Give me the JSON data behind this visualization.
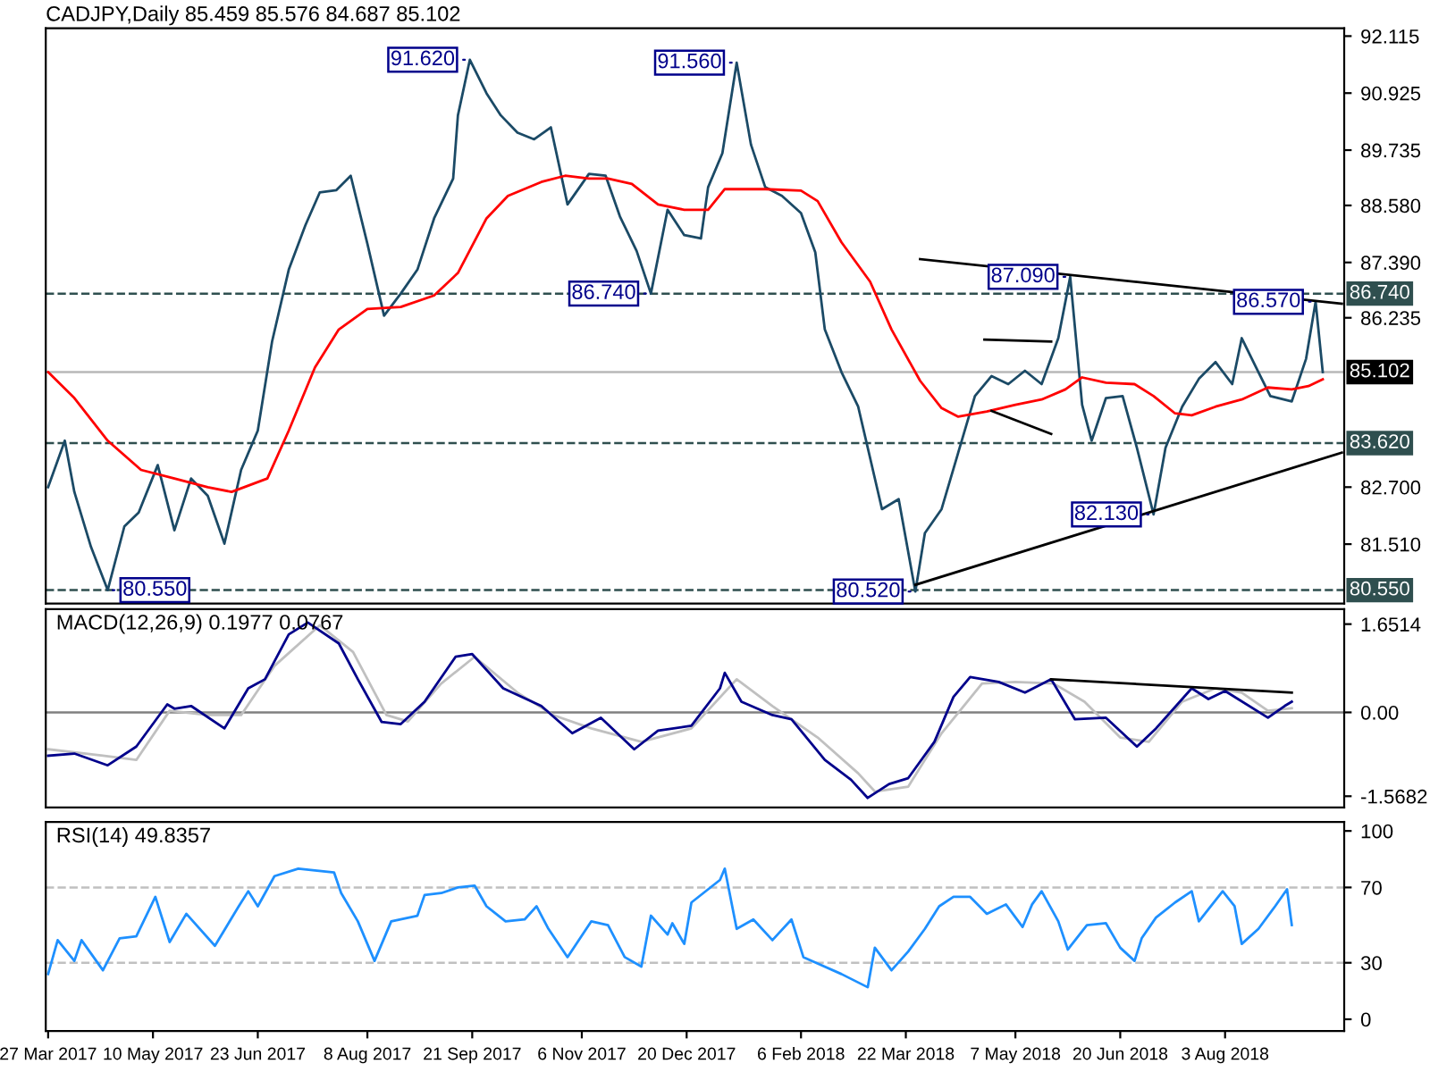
{
  "chart_data": [
    {
      "type": "line",
      "title": "CADJPY,Daily 85.459 85.576 84.687 85.102",
      "tick_labels": "y",
      "xlim": [
        "2017-03-26",
        "2018-09-22"
      ],
      "ylim": [
        80.27,
        92.28
      ],
      "yticks": [
        {
          "value": 92.115,
          "label": "92.115"
        },
        {
          "value": 90.925,
          "label": "90.925"
        },
        {
          "value": 89.735,
          "label": "89.735"
        },
        {
          "value": 88.58,
          "label": "88.580"
        },
        {
          "value": 87.39,
          "label": "87.390"
        },
        {
          "value": 86.235,
          "label": "86.235"
        },
        {
          "value": 82.7,
          "label": "82.700"
        },
        {
          "value": 81.51,
          "label": "81.510"
        }
      ],
      "series": [
        {
          "color": "#1b4a66",
          "x": [
            "2017-03-27",
            "2017-04-03",
            "2017-04-07",
            "2017-04-14",
            "2017-04-21",
            "2017-04-28",
            "2017-05-04",
            "2017-05-12",
            "2017-05-19",
            "2017-05-26",
            "2017-06-02",
            "2017-06-09",
            "2017-06-16",
            "2017-06-23",
            "2017-06-29",
            "2017-07-06",
            "2017-07-13",
            "2017-07-19",
            "2017-07-26",
            "2017-08-01",
            "2017-08-08",
            "2017-08-15",
            "2017-08-22",
            "2017-08-29",
            "2017-09-05",
            "2017-09-13",
            "2017-09-15",
            "2017-09-20",
            "2017-09-27",
            "2017-10-03",
            "2017-10-10",
            "2017-10-17",
            "2017-10-24",
            "2017-10-31",
            "2017-11-09",
            "2017-11-16",
            "2017-11-22",
            "2017-11-29",
            "2017-12-05",
            "2017-12-12",
            "2017-12-19",
            "2017-12-26",
            "2017-12-29",
            "2018-01-04",
            "2018-01-10",
            "2018-01-16",
            "2018-01-22",
            "2018-01-29",
            "2018-02-06",
            "2018-02-12",
            "2018-02-16",
            "2018-02-23",
            "2018-03-02",
            "2018-03-12",
            "2018-03-19",
            "2018-03-26",
            "2018-03-30",
            "2018-04-06",
            "2018-04-13",
            "2018-04-20",
            "2018-04-27",
            "2018-05-04",
            "2018-05-11",
            "2018-05-18",
            "2018-05-25",
            "2018-05-30",
            "2018-06-04",
            "2018-06-08",
            "2018-06-14",
            "2018-06-21",
            "2018-06-27",
            "2018-07-04",
            "2018-07-09",
            "2018-07-16",
            "2018-07-23",
            "2018-07-30",
            "2018-08-06",
            "2018-08-10",
            "2018-08-17",
            "2018-08-22",
            "2018-08-31",
            "2018-09-06",
            "2018-09-10",
            "2018-09-13"
          ],
          "values": [
            82.7,
            83.67,
            82.6,
            81.45,
            80.55,
            81.88,
            82.17,
            83.16,
            81.8,
            82.88,
            82.52,
            81.52,
            83.06,
            83.88,
            85.74,
            87.24,
            88.17,
            88.85,
            88.9,
            89.2,
            87.78,
            86.28,
            86.74,
            87.24,
            88.31,
            89.14,
            90.46,
            91.62,
            90.92,
            90.46,
            90.1,
            89.96,
            90.21,
            88.6,
            89.24,
            89.2,
            88.35,
            87.63,
            86.74,
            88.49,
            87.96,
            87.89,
            88.96,
            89.67,
            91.56,
            89.85,
            88.96,
            88.78,
            88.42,
            87.6,
            85.99,
            85.1,
            84.38,
            82.24,
            82.45,
            80.52,
            81.74,
            82.24,
            83.42,
            84.6,
            85.02,
            84.85,
            85.13,
            84.85,
            85.81,
            87.09,
            84.42,
            83.67,
            84.56,
            84.6,
            83.52,
            82.13,
            83.52,
            84.38,
            84.96,
            85.31,
            84.85,
            85.81,
            85.1,
            84.6,
            84.49,
            85.38,
            86.57,
            85.102
          ]
        },
        {
          "color": "#ff0000",
          "x": [
            "2017-03-27",
            "2017-04-07",
            "2017-04-21",
            "2017-05-05",
            "2017-05-19",
            "2017-06-02",
            "2017-06-12",
            "2017-06-27",
            "2017-07-06",
            "2017-07-17",
            "2017-07-27",
            "2017-08-08",
            "2017-08-22",
            "2017-09-05",
            "2017-09-15",
            "2017-09-27",
            "2017-10-06",
            "2017-10-20",
            "2017-10-30",
            "2017-11-09",
            "2017-11-17",
            "2017-11-27",
            "2017-12-08",
            "2017-12-19",
            "2017-12-29",
            "2018-01-05",
            "2018-01-22",
            "2018-02-06",
            "2018-02-13",
            "2018-02-23",
            "2018-03-07",
            "2018-03-16",
            "2018-03-28",
            "2018-04-06",
            "2018-04-13",
            "2018-04-25",
            "2018-05-07",
            "2018-05-18",
            "2018-05-28",
            "2018-06-04",
            "2018-06-14",
            "2018-06-26",
            "2018-07-04",
            "2018-07-13",
            "2018-07-20",
            "2018-07-30",
            "2018-08-10",
            "2018-08-21",
            "2018-08-31",
            "2018-09-07",
            "2018-09-13"
          ],
          "values": [
            85.1,
            84.56,
            83.67,
            83.06,
            82.88,
            82.7,
            82.6,
            82.88,
            83.88,
            85.2,
            85.99,
            86.42,
            86.46,
            86.7,
            87.17,
            88.31,
            88.78,
            89.07,
            89.2,
            89.14,
            89.14,
            89.03,
            88.6,
            88.49,
            88.49,
            88.92,
            88.92,
            88.89,
            88.67,
            87.81,
            86.99,
            85.99,
            84.92,
            84.35,
            84.17,
            84.28,
            84.42,
            84.53,
            84.74,
            84.99,
            84.88,
            84.85,
            84.6,
            84.24,
            84.2,
            84.38,
            84.53,
            84.78,
            84.74,
            84.81,
            84.95
          ]
        },
        {
          "color": "#000000",
          "x": [
            "2018-03-28",
            "2018-09-21"
          ],
          "values": [
            87.46,
            86.53
          ]
        },
        {
          "color": "#000000",
          "x": [
            "2018-03-26",
            "2018-09-21"
          ],
          "values": [
            80.66,
            83.42
          ]
        },
        {
          "color": "#000000",
          "x": [
            "2018-04-24",
            "2018-05-22"
          ],
          "values": [
            85.78,
            85.74
          ]
        },
        {
          "color": "#000000",
          "x": [
            "2018-04-27",
            "2018-05-22"
          ],
          "values": [
            84.29,
            83.81
          ]
        }
      ],
      "ref_lines": [
        {
          "axis": "y",
          "value": 86.74,
          "label": "86.740",
          "color": "#2f4f4f",
          "line_style": "dashed"
        },
        {
          "axis": "y",
          "value": 85.102,
          "label": "85.102",
          "color": "#b8b8b8",
          "line_style": "solid"
        },
        {
          "axis": "y",
          "value": 83.62,
          "label": "83.620",
          "color": "#2f4f4f",
          "line_style": "dashed"
        },
        {
          "axis": "y",
          "value": 80.55,
          "label": "80.550",
          "color": "#2f4f4f",
          "line_style": "dashed"
        }
      ],
      "annotations": [
        {
          "text": "91.620",
          "x": "2017-09-20",
          "y": 91.62
        },
        {
          "text": "91.560",
          "x": "2018-01-10",
          "y": 91.56
        },
        {
          "text": "86.740",
          "x": "2017-12-05",
          "y": 86.74
        },
        {
          "text": "87.090",
          "x": "2018-05-30",
          "y": 87.09
        },
        {
          "text": "86.570",
          "x": "2018-09-10",
          "y": 86.57
        },
        {
          "text": "82.130",
          "x": "2018-07-04",
          "y": 82.13
        },
        {
          "text": "80.520",
          "x": "2018-03-26",
          "y": 80.52
        },
        {
          "text": "80.550",
          "x": "2017-04-21",
          "y": 80.55
        }
      ]
    },
    {
      "type": "line",
      "title": "MACD(12,26,9) 0.1977 0.0767",
      "tick_labels": "y",
      "xlim": [
        "2017-03-26",
        "2018-09-22"
      ],
      "ylim": [
        -1.78,
        1.93
      ],
      "yticks": [
        1.6514,
        {
          "value": 0,
          "label": "0.00"
        },
        -1.5682
      ],
      "series": [
        {
          "color": "#c0c0c0",
          "x": [
            "2017-03-27",
            "2017-04-19",
            "2017-05-03",
            "2017-05-17",
            "2017-06-02",
            "2017-06-16",
            "2017-06-30",
            "2017-07-19",
            "2017-08-02",
            "2017-08-16",
            "2017-08-25",
            "2017-09-08",
            "2017-09-22",
            "2017-10-10",
            "2017-10-25",
            "2017-11-10",
            "2017-12-01",
            "2017-12-22",
            "2018-01-10",
            "2018-01-25",
            "2018-02-13",
            "2018-03-02",
            "2018-03-09",
            "2018-03-23",
            "2018-04-06",
            "2018-04-23",
            "2018-05-07",
            "2018-05-23",
            "2018-06-05",
            "2018-06-20",
            "2018-07-02",
            "2018-07-16",
            "2018-07-30",
            "2018-08-10",
            "2018-08-21",
            "2018-08-31"
          ],
          "values": [
            -0.69,
            -0.81,
            -0.89,
            0.03,
            -0.05,
            -0.05,
            0.87,
            1.63,
            1.13,
            -0.05,
            -0.17,
            0.54,
            1.04,
            0.37,
            -0.05,
            -0.3,
            -0.55,
            -0.3,
            0.62,
            0.12,
            -0.47,
            -1.14,
            -1.48,
            -1.39,
            -0.39,
            0.54,
            0.57,
            0.54,
            0.2,
            -0.47,
            -0.55,
            0.2,
            0.45,
            0.37,
            0.03,
            0.08
          ]
        },
        {
          "color": "#00008b",
          "x": [
            "2017-03-27",
            "2017-04-07",
            "2017-04-21",
            "2017-05-03",
            "2017-05-16",
            "2017-05-19",
            "2017-05-26",
            "2017-06-09",
            "2017-06-19",
            "2017-06-26",
            "2017-07-06",
            "2017-07-14",
            "2017-07-27",
            "2017-08-04",
            "2017-08-14",
            "2017-08-22",
            "2017-09-01",
            "2017-09-14",
            "2017-09-21",
            "2017-10-04",
            "2017-10-20",
            "2017-11-02",
            "2017-11-14",
            "2017-11-28",
            "2017-12-08",
            "2017-12-22",
            "2018-01-03",
            "2018-01-05",
            "2018-01-12",
            "2018-01-25",
            "2018-02-02",
            "2018-02-16",
            "2018-02-27",
            "2018-03-06",
            "2018-03-15",
            "2018-03-23",
            "2018-04-03",
            "2018-04-11",
            "2018-04-18",
            "2018-04-30",
            "2018-05-11",
            "2018-05-22",
            "2018-06-01",
            "2018-06-14",
            "2018-06-27",
            "2018-07-05",
            "2018-07-20",
            "2018-07-27",
            "2018-08-03",
            "2018-08-21",
            "2018-08-28",
            "2018-08-31"
          ],
          "values": [
            -0.81,
            -0.77,
            -0.99,
            -0.64,
            0.15,
            0.07,
            0.12,
            -0.3,
            0.45,
            0.62,
            1.46,
            1.68,
            1.29,
            0.62,
            -0.18,
            -0.22,
            0.2,
            1.04,
            1.09,
            0.45,
            0.12,
            -0.39,
            -0.1,
            -0.69,
            -0.34,
            -0.25,
            0.45,
            0.74,
            0.2,
            -0.05,
            -0.13,
            -0.89,
            -1.26,
            -1.6,
            -1.34,
            -1.23,
            -0.55,
            0.29,
            0.66,
            0.57,
            0.37,
            0.62,
            -0.13,
            -0.1,
            -0.64,
            -0.3,
            0.45,
            0.25,
            0.4,
            -0.1,
            0.12,
            0.2
          ]
        },
        {
          "color": "#000000",
          "x": [
            "2018-05-22",
            "2018-08-31"
          ],
          "values": [
            0.62,
            0.37
          ]
        }
      ],
      "ref_lines": [
        {
          "axis": "y",
          "value": 0,
          "color": "#808080",
          "line_style": "solid"
        }
      ]
    },
    {
      "type": "line",
      "title": "RSI(14) 49.8357",
      "xlim": [
        "2017-03-26",
        "2018-09-22"
      ],
      "ylim": [
        -6.2,
        104.8
      ],
      "xticks": [
        {
          "value": "2017-03-27",
          "label": "27 Mar 2017"
        },
        {
          "value": "2017-05-10",
          "label": "10 May 2017"
        },
        {
          "value": "2017-06-23",
          "label": "23 Jun 2017"
        },
        {
          "value": "2017-08-08",
          "label": "8 Aug 2017"
        },
        {
          "value": "2017-09-21",
          "label": "21 Sep 2017"
        },
        {
          "value": "2017-11-06",
          "label": "6 Nov 2017"
        },
        {
          "value": "2017-12-20",
          "label": "20 Dec 2017"
        },
        {
          "value": "2018-02-06",
          "label": "6 Feb 2018"
        },
        {
          "value": "2018-03-22",
          "label": "22 Mar 2018"
        },
        {
          "value": "2018-05-07",
          "label": "7 May 2018"
        },
        {
          "value": "2018-06-20",
          "label": "20 Jun 2018"
        },
        {
          "value": "2018-08-03",
          "label": "3 Aug 2018"
        }
      ],
      "yticks": [
        0,
        30,
        70,
        100
      ],
      "series": [
        {
          "color": "#1e90ff",
          "x": [
            "2017-03-27",
            "2017-03-31",
            "2017-04-07",
            "2017-04-10",
            "2017-04-19",
            "2017-04-26",
            "2017-05-03",
            "2017-05-11",
            "2017-05-17",
            "2017-05-24",
            "2017-06-05",
            "2017-06-15",
            "2017-06-19",
            "2017-06-23",
            "2017-06-30",
            "2017-07-10",
            "2017-07-17",
            "2017-07-25",
            "2017-07-28",
            "2017-08-04",
            "2017-08-11",
            "2017-08-18",
            "2017-08-29",
            "2017-09-01",
            "2017-09-08",
            "2017-09-15",
            "2017-09-22",
            "2017-09-27",
            "2017-10-05",
            "2017-10-13",
            "2017-10-18",
            "2017-10-23",
            "2017-10-31",
            "2017-11-10",
            "2017-11-17",
            "2017-11-24",
            "2017-12-01",
            "2017-12-05",
            "2017-12-12",
            "2017-12-14",
            "2017-12-19",
            "2017-12-22",
            "2018-01-03",
            "2018-01-05",
            "2018-01-10",
            "2018-01-17",
            "2018-01-25",
            "2018-02-02",
            "2018-02-07",
            "2018-02-14",
            "2018-02-23",
            "2018-03-06",
            "2018-03-09",
            "2018-03-16",
            "2018-03-23",
            "2018-03-30",
            "2018-04-05",
            "2018-04-11",
            "2018-04-18",
            "2018-04-25",
            "2018-05-03",
            "2018-05-10",
            "2018-05-14",
            "2018-05-18",
            "2018-05-25",
            "2018-05-29",
            "2018-06-06",
            "2018-06-14",
            "2018-06-20",
            "2018-06-26",
            "2018-06-29",
            "2018-07-05",
            "2018-07-13",
            "2018-07-20",
            "2018-07-23",
            "2018-08-02",
            "2018-08-07",
            "2018-08-10",
            "2018-08-17",
            "2018-08-24",
            "2018-08-29",
            "2018-08-31"
          ],
          "values": [
            24,
            42,
            31,
            42,
            26,
            43,
            44,
            65,
            41,
            56,
            39,
            60,
            68,
            60,
            76,
            80,
            79,
            78,
            67,
            52,
            31,
            52,
            55,
            66,
            67,
            70,
            71,
            60,
            52,
            53,
            60,
            48,
            33,
            52,
            50,
            33,
            28,
            55,
            45,
            51,
            40,
            62,
            74,
            80,
            48,
            53,
            42,
            53,
            33,
            29,
            24,
            17,
            38,
            26,
            36,
            48,
            60,
            65,
            65,
            56,
            61,
            49,
            61,
            68,
            52,
            37,
            50,
            51,
            38,
            31,
            43,
            54,
            62,
            68,
            52,
            68,
            60,
            40,
            48,
            60,
            69,
            50
          ]
        }
      ],
      "ref_lines": [
        {
          "axis": "y",
          "value": 70,
          "color": "#c0c0c0",
          "line_style": "dashed"
        },
        {
          "axis": "y",
          "value": 30,
          "color": "#c0c0c0",
          "line_style": "dashed"
        }
      ]
    }
  ]
}
